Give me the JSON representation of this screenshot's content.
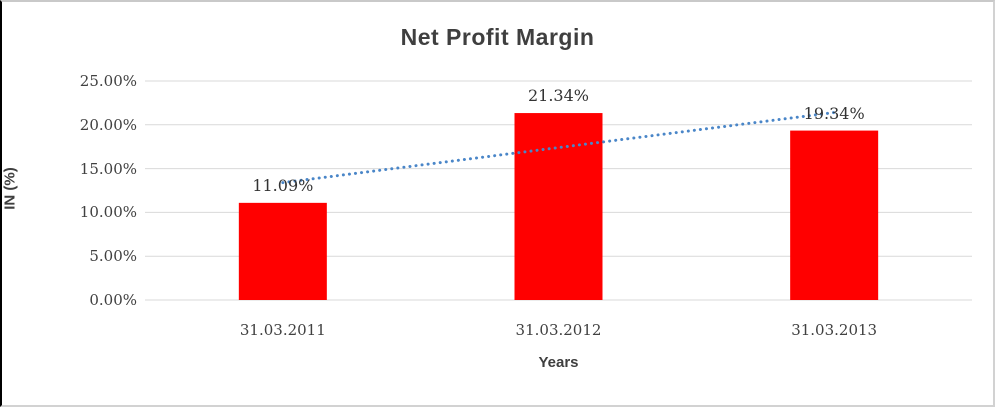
{
  "chart_data": {
    "type": "bar",
    "title": "Net Profit Margin",
    "xlabel": "Years",
    "ylabel": "IN (%)",
    "categories": [
      "31.03.2011",
      "31.03.2012",
      "31.03.2013"
    ],
    "values": [
      11.09,
      21.34,
      19.34
    ],
    "data_labels": [
      "11.09%",
      "21.34%",
      "19.34%"
    ],
    "ylim": [
      0,
      25
    ],
    "ytick_step": 5,
    "ytick_labels": [
      "0.00%",
      "5.00%",
      "10.00%",
      "15.00%",
      "20.00%",
      "25.00%"
    ],
    "grid": true,
    "legend_position": "none",
    "bar_color": "#ff0000",
    "gridline_color": "#d9d9d9",
    "trendline": {
      "type": "linear",
      "style": "dotted",
      "color": "#4a86c8",
      "fit_values": [
        13.4,
        17.3,
        21.4
      ]
    }
  }
}
